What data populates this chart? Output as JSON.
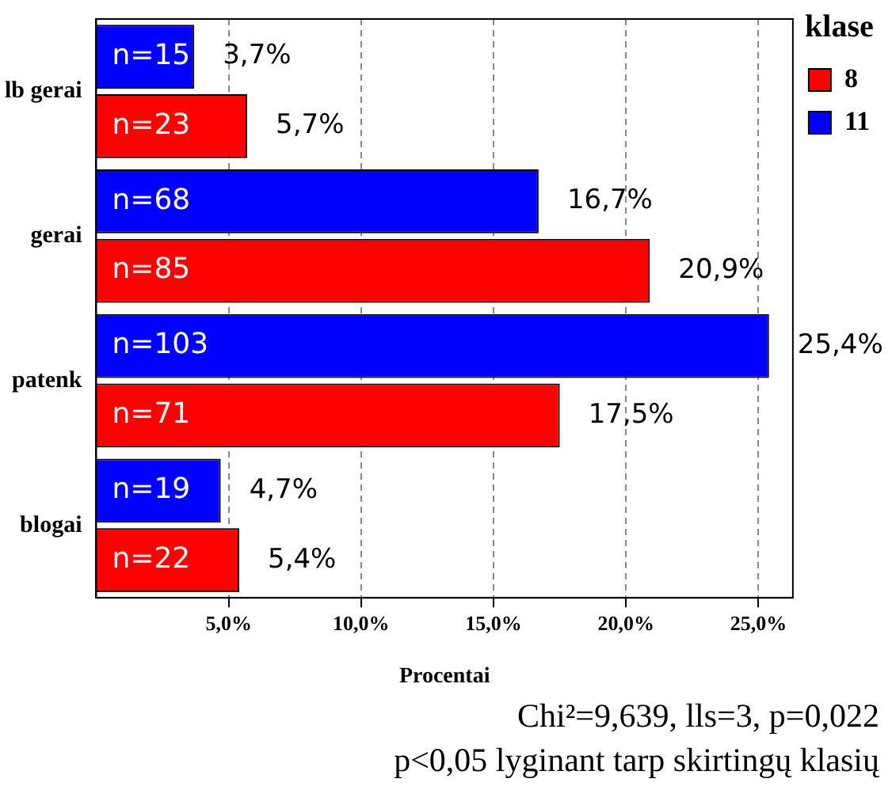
{
  "chart_data": {
    "type": "bar",
    "orientation": "horizontal",
    "xlabel": "Procentai",
    "legend_title": "klase",
    "legend": "top right",
    "grid": "x",
    "categories": [
      "lb gerai",
      "gerai",
      "patenk",
      "blogai"
    ],
    "series": [
      {
        "name": "11",
        "color": "#0000ff",
        "values": [
          3.7,
          16.7,
          25.4,
          4.7
        ],
        "value_labels": [
          "3,7%",
          "16,7%",
          "25,4%",
          "4,7%"
        ]
      },
      {
        "name": "8",
        "color": "#ff0000",
        "values": [
          5.7,
          20.9,
          17.5,
          5.4
        ],
        "value_labels": [
          "5,7%",
          "20,9%",
          "17,5%",
          "5,4%"
        ]
      }
    ],
    "xlim": [
      0,
      26.3
    ],
    "xticks": [
      {
        "value": 5,
        "label": "5,0%"
      },
      {
        "value": 10,
        "label": "10,0%"
      },
      {
        "value": 15,
        "label": "15,0%"
      },
      {
        "value": 20,
        "label": "20,0%"
      },
      {
        "value": 25,
        "label": "25,0%"
      }
    ],
    "annotations": [
      {
        "text": "n=15",
        "y": "lb gerai"
      },
      {
        "text": "n=23",
        "y": "lb gerai"
      },
      {
        "text": "n=68",
        "y": "gerai"
      },
      {
        "text": "n=85",
        "y": "gerai"
      },
      {
        "text": "n=103",
        "y": "patenk"
      },
      {
        "text": "n=71",
        "y": "patenk"
      },
      {
        "text": "n=19",
        "y": "blogai"
      },
      {
        "text": "n=22",
        "y": "blogai"
      },
      "Chi²=9,639, lls=3, p=0,022",
      "p<0,05 lyginant tarp skirtingų klasių"
    ]
  }
}
